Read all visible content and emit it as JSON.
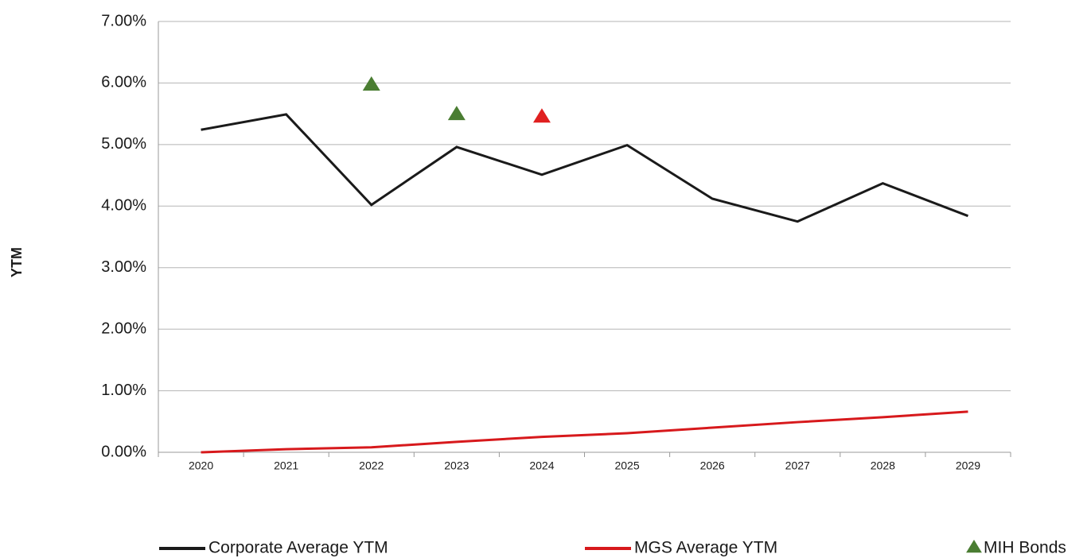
{
  "chart_data": {
    "type": "line",
    "y_label": "YTM",
    "categories": [
      "2020",
      "2021",
      "2022",
      "2023",
      "2024",
      "2025",
      "2026",
      "2027",
      "2028",
      "2029"
    ],
    "series": [
      {
        "name": "Corporate Average YTM",
        "color": "#1a1a1a",
        "type": "line",
        "values": [
          5.24,
          5.49,
          4.02,
          4.96,
          4.51,
          4.99,
          4.12,
          3.75,
          4.37,
          3.84
        ]
      },
      {
        "name": "MGS Average YTM",
        "color": "#d7191c",
        "type": "line",
        "values": [
          0,
          0.05,
          0.08,
          0.17,
          0.25,
          0.31,
          0.4,
          0.49,
          0.57,
          0.66
        ]
      },
      {
        "name": "MIH Bonds",
        "color": "#4a7d32",
        "type": "scatter",
        "marker": "triangle",
        "colors": [
          null,
          null,
          "#4a7d32",
          "#4a7d32",
          "#e02020",
          null,
          null,
          null,
          null,
          null
        ],
        "values": [
          null,
          null,
          5.98,
          5.5,
          5.46,
          null,
          null,
          null,
          null,
          null
        ]
      }
    ],
    "ylim": [
      0,
      7
    ],
    "yticks": [
      {
        "value": 0,
        "label": "0.00%"
      },
      {
        "value": 1,
        "label": "1.00%"
      },
      {
        "value": 2,
        "label": "2.00%"
      },
      {
        "value": 3,
        "label": "3.00%"
      },
      {
        "value": 4,
        "label": "4.00%"
      },
      {
        "value": 5,
        "label": "5.00%"
      },
      {
        "value": 6,
        "label": "6.00%"
      },
      {
        "value": 7,
        "label": "7.00%"
      }
    ],
    "grid": true,
    "legend": "bottom"
  }
}
